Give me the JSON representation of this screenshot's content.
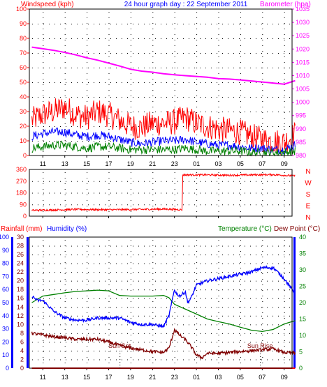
{
  "chart_data": [
    {
      "type": "line",
      "title": "24 hour graph day : 22 September 2011",
      "ylabel_left": "Windspeed (kph)",
      "ylabel_right": "Barometer (hpa)",
      "x_ticks": [
        "11",
        "13",
        "15",
        "17",
        "19",
        "21",
        "23",
        "01",
        "03",
        "05",
        "07",
        "09"
      ],
      "ylim_left": [
        0,
        100
      ],
      "ylim_right": [
        980,
        1035
      ],
      "left_ticks": [
        "0",
        "10",
        "20",
        "30",
        "40",
        "50",
        "60",
        "70",
        "80",
        "90",
        "100"
      ],
      "right_ticks": [
        "980",
        "985",
        "990",
        "995",
        "1000",
        "1005",
        "1010",
        "1015",
        "1020",
        "1025",
        "1030",
        "1035"
      ],
      "grid": true,
      "colors": {
        "barometer": "#ff00ff",
        "gust": "#ff0000",
        "average": "#0000ff",
        "windspeed": "#008000"
      },
      "series": [
        {
          "id": "barometer",
          "axis": "right",
          "x": [
            0,
            1,
            2,
            3,
            4,
            5,
            6,
            7,
            8,
            9,
            10,
            11,
            12,
            13,
            14,
            15,
            16,
            17,
            18,
            19,
            20,
            21,
            22,
            23,
            24
          ],
          "values": [
            1020.7,
            1020.1,
            1019.5,
            1018.7,
            1017.8,
            1016.7,
            1015.8,
            1014.7,
            1013.6,
            1012.4,
            1011.7,
            1011.3,
            1010.7,
            1010.3,
            1010.0,
            1009.7,
            1009.4,
            1008.9,
            1008.7,
            1008.4,
            1008.0,
            1007.6,
            1007.2,
            1006.8,
            1008.1
          ]
        },
        {
          "id": "gust",
          "axis": "left",
          "noisy": true,
          "x": [
            0,
            1,
            2,
            3,
            4,
            5,
            6,
            7,
            8,
            9,
            10,
            11,
            12,
            13,
            14,
            15,
            16,
            17,
            18,
            19,
            20,
            21,
            22,
            23,
            24
          ],
          "values": [
            24,
            28,
            30,
            33,
            28,
            26,
            30,
            28,
            24,
            20,
            19,
            22,
            22,
            23,
            26,
            22,
            20,
            18,
            17,
            16,
            13,
            11,
            10,
            9,
            15
          ]
        },
        {
          "id": "average",
          "axis": "left",
          "noisy": true,
          "x": [
            0,
            1,
            2,
            3,
            4,
            5,
            6,
            7,
            8,
            9,
            10,
            11,
            12,
            13,
            14,
            15,
            16,
            17,
            18,
            19,
            20,
            21,
            22,
            23,
            24
          ],
          "values": [
            13,
            15,
            16,
            16,
            14,
            13,
            14,
            13,
            11,
            9,
            8,
            9,
            10,
            10,
            11,
            9,
            8,
            7,
            7,
            6,
            5,
            5,
            4,
            4,
            7
          ]
        },
        {
          "id": "windspeed",
          "axis": "left",
          "noisy": true,
          "x": [
            0,
            1,
            2,
            3,
            4,
            5,
            6,
            7,
            8,
            9,
            10,
            11,
            12,
            13,
            14,
            15,
            16,
            17,
            18,
            19,
            20,
            21,
            22,
            23,
            24
          ],
          "values": [
            5,
            6,
            7,
            7,
            6,
            5,
            6,
            6,
            5,
            4,
            4,
            4,
            4,
            4,
            5,
            4,
            3,
            3,
            3,
            3,
            2,
            2,
            2,
            2,
            3
          ]
        }
      ]
    },
    {
      "type": "line",
      "ylabel_right_letters": [
        "N",
        "W",
        "S",
        "E",
        "N"
      ],
      "ylim": [
        0,
        360
      ],
      "left_ticks": [
        "0",
        "90",
        "180",
        "270",
        "360"
      ],
      "x_ticks": [
        "11",
        "13",
        "15",
        "17",
        "19",
        "21",
        "23",
        "01",
        "03",
        "05",
        "07",
        "09"
      ],
      "colors": {
        "direction": "#ff0000"
      },
      "series": [
        {
          "id": "direction",
          "noisy": true,
          "x": [
            0,
            2,
            4,
            6,
            8,
            10,
            12,
            13.7,
            13.75,
            16,
            18,
            20,
            22,
            24
          ],
          "values": [
            45,
            48,
            52,
            50,
            50,
            52,
            55,
            50,
            318,
            318,
            315,
            318,
            320,
            310
          ]
        }
      ]
    },
    {
      "type": "line",
      "ylabel_left_1": "Rainfall (mm)",
      "ylabel_left_2": "Humidity (%)",
      "ylabel_right_1": "Temperature (°C)",
      "ylabel_right_2": "Dew Point (°C)",
      "ylim_temperature": [
        0,
        40
      ],
      "ylim_rainfall": [
        0,
        100
      ],
      "ylim_humidity": [
        0,
        30
      ],
      "rainfall_ticks": [
        "0",
        "10",
        "20",
        "30",
        "40",
        "50",
        "60",
        "70",
        "80",
        "90",
        "100"
      ],
      "humidity_ticks": [
        "0",
        "2",
        "4",
        "6",
        "8",
        "10",
        "12",
        "14",
        "16",
        "18",
        "20",
        "22",
        "24",
        "26",
        "28",
        "30"
      ],
      "temperature_ticks": [
        "0",
        "5",
        "10",
        "15",
        "20",
        "25",
        "30",
        "35",
        "40"
      ],
      "x_ticks": [
        "11",
        "13",
        "15",
        "17",
        "19",
        "21",
        "23",
        "01",
        "03",
        "05",
        "07",
        "09"
      ],
      "annotations": [
        {
          "text": "Sun Set",
          "x": 8
        },
        {
          "text": "Sun Rise",
          "x": 20.8
        }
      ],
      "colors": {
        "temperature": "#008000",
        "humidity": "#0000ff",
        "dewpoint": "#800000",
        "rainfall": "#ff0000"
      },
      "series": [
        {
          "id": "temperature",
          "axis": "temperature",
          "x": [
            0,
            1,
            2,
            3,
            4,
            5,
            6,
            7,
            8,
            9,
            10,
            11,
            12,
            12.5,
            13,
            14,
            15,
            16,
            17,
            18,
            19,
            20,
            21,
            22,
            23,
            24
          ],
          "values": [
            20,
            22,
            22.5,
            23,
            23.4,
            23.6,
            23.8,
            23.6,
            22.2,
            22,
            22,
            22,
            22.2,
            21.5,
            19.5,
            18,
            16.5,
            15,
            14.2,
            13.5,
            12.5,
            11.6,
            11.2,
            11.8,
            13.5,
            14.5
          ]
        },
        {
          "id": "humidity",
          "axis": "humidity",
          "x": [
            0,
            0.5,
            1,
            2,
            3,
            4,
            5,
            6,
            7,
            8,
            9,
            10,
            11,
            12,
            12.5,
            13,
            13.2,
            13.5,
            14,
            14.2,
            14.5,
            15,
            16,
            17,
            18,
            19,
            20,
            21,
            22,
            23,
            24
          ],
          "values": [
            16.5,
            15.5,
            15.5,
            13,
            11.5,
            11,
            11,
            11.5,
            11.5,
            11.5,
            10.5,
            10,
            10,
            9.5,
            12,
            18,
            17,
            16.5,
            17.5,
            15,
            16,
            19,
            20,
            20.5,
            21,
            21.5,
            22,
            23,
            23,
            20.5,
            17
          ]
        },
        {
          "id": "dewpoint",
          "axis": "humidity",
          "noisy": true,
          "x": [
            0,
            1,
            2,
            3,
            4,
            5,
            6,
            7,
            8,
            9,
            10,
            11,
            12,
            12.5,
            13,
            13.5,
            14,
            14.5,
            15,
            15.5,
            16,
            17,
            18,
            19,
            20,
            21,
            22,
            23,
            24
          ],
          "values": [
            8,
            7.6,
            7.2,
            7,
            6.6,
            6.6,
            6.6,
            6,
            5.2,
            4.6,
            4.2,
            3.8,
            3.6,
            4.6,
            8.8,
            7.5,
            6.5,
            5,
            3,
            2.4,
            3.4,
            3.4,
            3.6,
            3.8,
            4,
            4.2,
            4.4,
            3.6,
            3.4
          ]
        },
        {
          "id": "rainfall",
          "axis": "rainfall",
          "x": [
            0,
            24
          ],
          "values": [
            0,
            0
          ]
        }
      ]
    }
  ]
}
